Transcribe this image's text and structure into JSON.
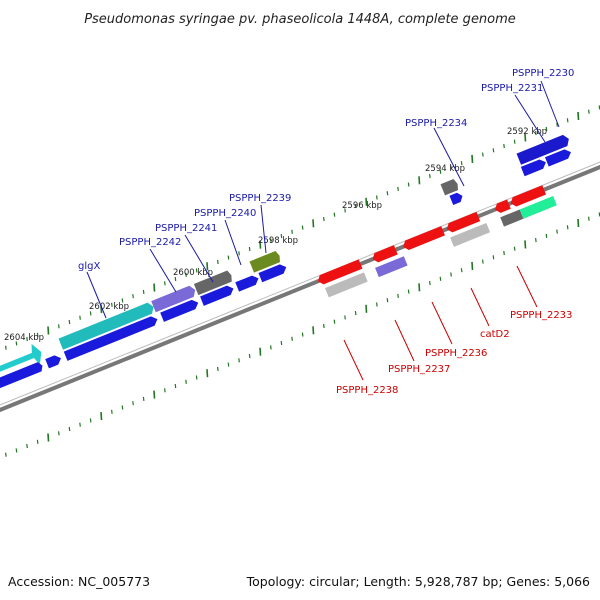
{
  "title": "Pseudomonas syringae pv. phaseolicola 1448A, complete genome",
  "footer": {
    "accession": "Accession: NC_005773",
    "summary": "Topology: circular; Length: 5,928,787 bp; Genes: 5,066"
  },
  "colors": {
    "blue_label": "#1a1aa8",
    "red_label": "#cc0000",
    "backbone": "#7a7a7a",
    "tick": "#227722"
  },
  "kbp_labels": [
    "2604 kbp",
    "2602 kbp",
    "2600 kbp",
    "2598 kbp",
    "2596 kbp",
    "2594 kbp",
    "2592 kbp"
  ],
  "gene_labels_top": [
    "PSPPH_2230",
    "PSPPH_2231",
    "PSPPH_2234",
    "PSPPH_2239",
    "PSPPH_2240",
    "PSPPH_2241",
    "PSPPH_2242",
    "glgX"
  ],
  "gene_labels_bottom": [
    "PSPPH_2233",
    "catD2",
    "PSPPH_2236",
    "PSPPH_2237",
    "PSPPH_2238"
  ]
}
